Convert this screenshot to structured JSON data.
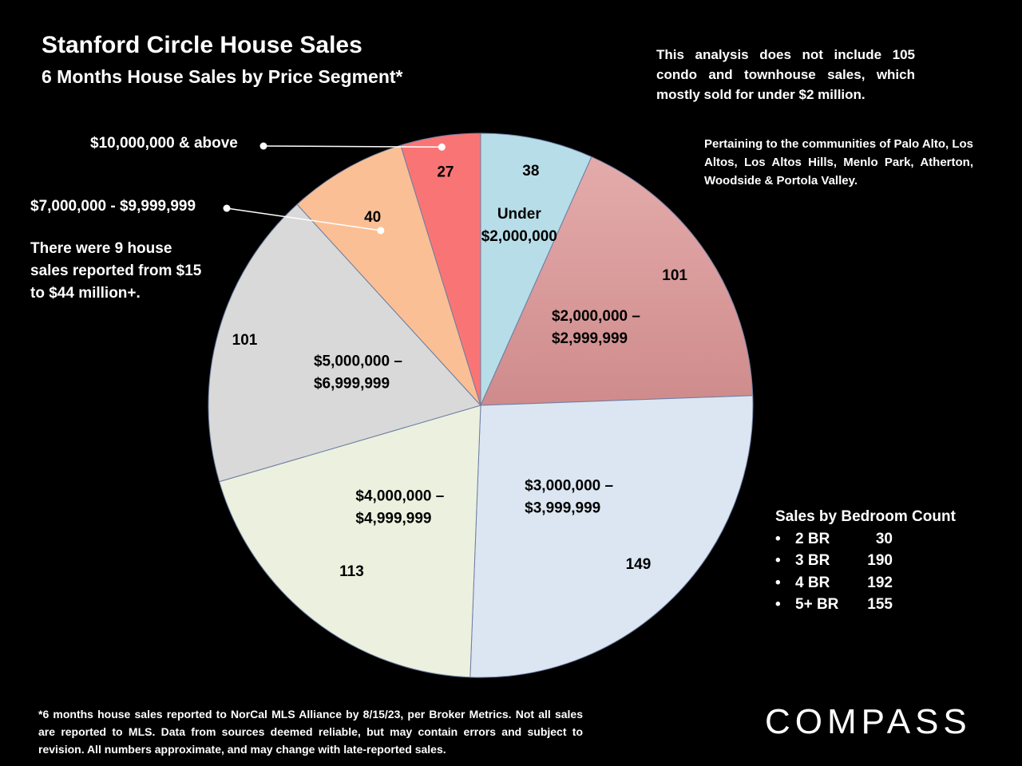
{
  "header": {
    "title": "Stanford Circle House Sales",
    "subtitle": "6 Months House Sales by Price Segment*"
  },
  "notes": {
    "condo_note": "This analysis does not include 105 condo and townhouse sales, which mostly sold for under $2 million.",
    "communities": "Pertaining to the communities of Palo Alto, Los Altos, Los Altos Hills, Menlo Park, Atherton, Woodside & Portola Valley.",
    "extra_sales": "There were 9 house sales reported from $15 to $44 million+."
  },
  "bedrooms": {
    "title": "Sales by Bedroom Count",
    "items": [
      {
        "label": "2 BR",
        "count": "30"
      },
      {
        "label": "3 BR",
        "count": "190"
      },
      {
        "label": "4 BR",
        "count": "192"
      },
      {
        "label": "5+ BR",
        "count": "155"
      }
    ]
  },
  "footnote": "*6 months house sales reported to NorCal MLS Alliance by 8/15/23, per Broker Metrics. Not all sales are reported to MLS. Data from sources deemed reliable, but may contain errors and subject to revision. All numbers approximate, and may change with late-reported sales.",
  "logo": "COMPASS",
  "chart_data": {
    "type": "pie",
    "title": "Stanford Circle House Sales",
    "subtitle": "6 Months House Sales by Price Segment*",
    "start": "top",
    "direction": "clockwise",
    "slices": [
      {
        "category": [
          "Under",
          "$2,000,000"
        ],
        "value": 38,
        "color": "#b7dde8"
      },
      {
        "category": [
          "$2,000,000 –",
          "$2,999,999"
        ],
        "value": 101,
        "color": "#d79c9c"
      },
      {
        "category": [
          "$3,000,000 –",
          "$3,999,999"
        ],
        "value": 149,
        "color": "#dce6f2"
      },
      {
        "category": [
          "$4,000,000 –",
          "$4,999,999"
        ],
        "value": 113,
        "color": "#ebf1de"
      },
      {
        "category": [
          "$5,000,000 –",
          "$6,999,999"
        ],
        "value": 101,
        "color": "#d9d9d9"
      },
      {
        "category": [
          "$7,000,000 - $9,999,999"
        ],
        "value": 40,
        "color": "#fbbf95"
      },
      {
        "category": [
          "$10,000,000 & above"
        ],
        "value": 27,
        "color": "#f97575"
      }
    ]
  }
}
